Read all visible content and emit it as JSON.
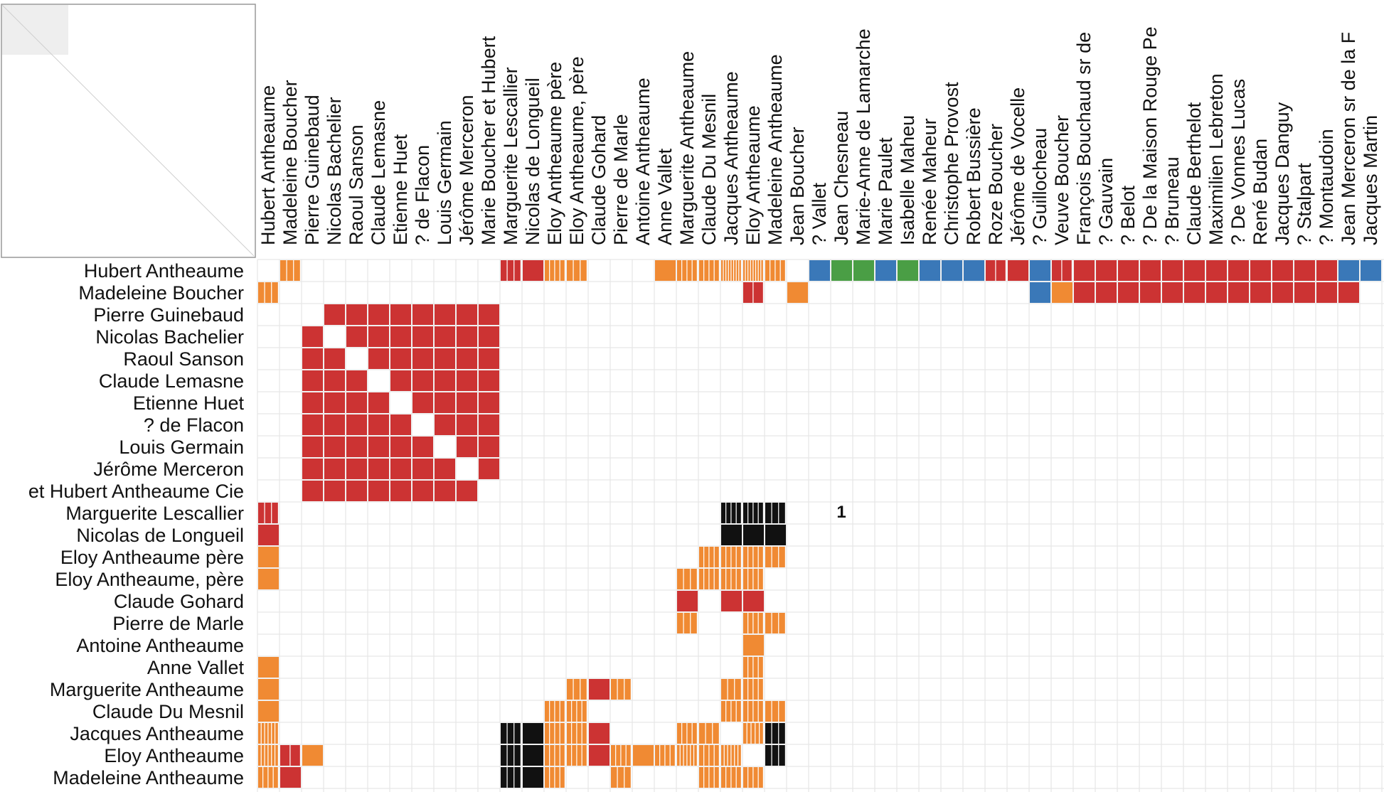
{
  "chart_data": {
    "type": "heatmap",
    "title": "",
    "columns": [
      "Hubert Antheaume",
      "Madeleine Boucher",
      "Pierre Guinebaud",
      "Nicolas Bachelier",
      "Raoul Sanson",
      "Claude Lemasne",
      "Etienne Huet",
      "? de Flacon",
      "Louis Germain",
      "Jérôme Merceron",
      "Marie Boucher et Hubert",
      "Marguerite Lescallier",
      "Nicolas de Longueil",
      "Eloy Antheaume père",
      "Eloy Antheaume, père",
      "Claude Gohard",
      "Pierre de Marle",
      "Antoine Antheaume",
      "Anne Vallet",
      "Marguerite Antheaume",
      "Claude Du Mesnil",
      "Jacques Antheaume",
      "Eloy Antheaume",
      "Madeleine Antheaume",
      "Jean Boucher",
      "? Vallet",
      "Jean Chesneau",
      "Marie-Anne de Lamarche",
      "Marie Paulet",
      "Isabelle Maheu",
      "Renée Maheur",
      "Christophe Provost",
      "Robert Bussière",
      "Roze Boucher",
      "Jérôme de Vocelle",
      "? Guillocheau",
      "Veuve Boucher",
      "François Bouchaud sr de",
      "? Gauvain",
      "? Belot",
      "? De la Maison Rouge Pe",
      "? Bruneau",
      "Claude Berthelot",
      "Maximilien Lebreton",
      "? De Vonnes Lucas",
      "René Budan",
      "Jacques Danguy",
      "? Stalpart",
      "? Montaudoin",
      "Jean Merceron sr de la F",
      "Jacques Martin"
    ],
    "rows": [
      "Hubert Antheaume",
      "Madeleine Boucher",
      "Pierre Guinebaud",
      "Nicolas Bachelier",
      "Raoul Sanson",
      "Claude Lemasne",
      "Etienne Huet",
      "? de Flacon",
      "Louis Germain",
      "Jérôme Merceron",
      "et Hubert Antheaume Cie",
      "Marguerite Lescallier",
      "Nicolas de Longueil",
      "Eloy Antheaume père",
      "Eloy Antheaume, père",
      "Claude Gohard",
      "Pierre de Marle",
      "Antoine Antheaume",
      "Anne Vallet",
      "Marguerite Antheaume",
      "Claude Du Mesnil",
      "Jacques Antheaume",
      "Eloy Antheaume",
      "Madeleine Antheaume"
    ],
    "category_colors": {
      "red": "#cc3333",
      "orange": "#f08a33",
      "blue": "#3a78b8",
      "green": "#4a9e45",
      "black": "#111111"
    },
    "grid_color": "#e6e6e6",
    "cells": [
      {
        "r": 0,
        "c": 1,
        "k": "orange",
        "s": 3
      },
      {
        "r": 0,
        "c": 11,
        "k": "red",
        "s": 3
      },
      {
        "r": 0,
        "c": 12,
        "k": "red"
      },
      {
        "r": 0,
        "c": 13,
        "k": "orange",
        "s": 4
      },
      {
        "r": 0,
        "c": 14,
        "k": "orange",
        "s": 3
      },
      {
        "r": 0,
        "c": 18,
        "k": "orange"
      },
      {
        "r": 0,
        "c": 19,
        "k": "orange",
        "s": 4
      },
      {
        "r": 0,
        "c": 20,
        "k": "orange",
        "s": 4
      },
      {
        "r": 0,
        "c": 21,
        "k": "orange",
        "s": 8
      },
      {
        "r": 0,
        "c": 22,
        "k": "orange",
        "s": 8
      },
      {
        "r": 0,
        "c": 23,
        "k": "orange",
        "s": 4
      },
      {
        "r": 0,
        "c": 25,
        "k": "blue"
      },
      {
        "r": 0,
        "c": 26,
        "k": "green"
      },
      {
        "r": 0,
        "c": 27,
        "k": "green"
      },
      {
        "r": 0,
        "c": 28,
        "k": "blue"
      },
      {
        "r": 0,
        "c": 29,
        "k": "green"
      },
      {
        "r": 0,
        "c": 30,
        "k": "blue"
      },
      {
        "r": 0,
        "c": 31,
        "k": "blue"
      },
      {
        "r": 0,
        "c": 32,
        "k": "blue"
      },
      {
        "r": 0,
        "c": 33,
        "k": "red",
        "s": 2
      },
      {
        "r": 0,
        "c": 34,
        "k": "red"
      },
      {
        "r": 0,
        "c": 35,
        "k": "blue"
      },
      {
        "r": 0,
        "c": 36,
        "k": "red",
        "s": 2
      },
      {
        "r": 0,
        "c": 37,
        "k": "red"
      },
      {
        "r": 0,
        "c": 38,
        "k": "red"
      },
      {
        "r": 0,
        "c": 39,
        "k": "red"
      },
      {
        "r": 0,
        "c": 40,
        "k": "red"
      },
      {
        "r": 0,
        "c": 41,
        "k": "red"
      },
      {
        "r": 0,
        "c": 42,
        "k": "red"
      },
      {
        "r": 0,
        "c": 43,
        "k": "red"
      },
      {
        "r": 0,
        "c": 44,
        "k": "red"
      },
      {
        "r": 0,
        "c": 45,
        "k": "red"
      },
      {
        "r": 0,
        "c": 46,
        "k": "red"
      },
      {
        "r": 0,
        "c": 47,
        "k": "red"
      },
      {
        "r": 0,
        "c": 48,
        "k": "red"
      },
      {
        "r": 0,
        "c": 49,
        "k": "blue"
      },
      {
        "r": 0,
        "c": 50,
        "k": "blue"
      },
      {
        "r": 1,
        "c": 0,
        "k": "orange",
        "s": 3
      },
      {
        "r": 1,
        "c": 22,
        "k": "red",
        "s": 2
      },
      {
        "r": 1,
        "c": 24,
        "k": "orange"
      },
      {
        "r": 1,
        "c": 35,
        "k": "blue"
      },
      {
        "r": 1,
        "c": 36,
        "k": "orange"
      },
      {
        "r": 1,
        "c": 37,
        "k": "red"
      },
      {
        "r": 1,
        "c": 38,
        "k": "red"
      },
      {
        "r": 1,
        "c": 39,
        "k": "red"
      },
      {
        "r": 1,
        "c": 40,
        "k": "red"
      },
      {
        "r": 1,
        "c": 41,
        "k": "red"
      },
      {
        "r": 1,
        "c": 42,
        "k": "red"
      },
      {
        "r": 1,
        "c": 43,
        "k": "red"
      },
      {
        "r": 1,
        "c": 44,
        "k": "red"
      },
      {
        "r": 1,
        "c": 45,
        "k": "red"
      },
      {
        "r": 1,
        "c": 46,
        "k": "red"
      },
      {
        "r": 1,
        "c": 47,
        "k": "red"
      },
      {
        "r": 1,
        "c": 48,
        "k": "red"
      },
      {
        "r": 1,
        "c": 49,
        "k": "red"
      },
      {
        "r": 11,
        "c": 0,
        "k": "red",
        "s": 3
      },
      {
        "r": 11,
        "c": 21,
        "k": "black",
        "s": 4
      },
      {
        "r": 11,
        "c": 22,
        "k": "black",
        "s": 4
      },
      {
        "r": 11,
        "c": 23,
        "k": "black",
        "s": 3
      },
      {
        "r": 12,
        "c": 0,
        "k": "red"
      },
      {
        "r": 12,
        "c": 21,
        "k": "black"
      },
      {
        "r": 12,
        "c": 22,
        "k": "black"
      },
      {
        "r": 12,
        "c": 23,
        "k": "black"
      },
      {
        "r": 13,
        "c": 0,
        "k": "orange"
      },
      {
        "r": 13,
        "c": 20,
        "k": "orange",
        "s": 4
      },
      {
        "r": 13,
        "c": 21,
        "k": "orange",
        "s": 4
      },
      {
        "r": 13,
        "c": 22,
        "k": "orange",
        "s": 4
      },
      {
        "r": 13,
        "c": 23,
        "k": "orange",
        "s": 3
      },
      {
        "r": 14,
        "c": 0,
        "k": "orange"
      },
      {
        "r": 14,
        "c": 19,
        "k": "orange",
        "s": 3
      },
      {
        "r": 14,
        "c": 20,
        "k": "orange",
        "s": 4
      },
      {
        "r": 14,
        "c": 21,
        "k": "orange",
        "s": 4
      },
      {
        "r": 14,
        "c": 22,
        "k": "orange",
        "s": 4
      },
      {
        "r": 15,
        "c": 19,
        "k": "red"
      },
      {
        "r": 15,
        "c": 21,
        "k": "red"
      },
      {
        "r": 15,
        "c": 22,
        "k": "red"
      },
      {
        "r": 16,
        "c": 19,
        "k": "orange",
        "s": 3
      },
      {
        "r": 16,
        "c": 22,
        "k": "orange",
        "s": 4
      },
      {
        "r": 16,
        "c": 23,
        "k": "orange",
        "s": 3
      },
      {
        "r": 17,
        "c": 22,
        "k": "orange"
      },
      {
        "r": 18,
        "c": 0,
        "k": "orange"
      },
      {
        "r": 18,
        "c": 22,
        "k": "orange",
        "s": 4
      },
      {
        "r": 19,
        "c": 0,
        "k": "orange"
      },
      {
        "r": 19,
        "c": 14,
        "k": "orange",
        "s": 3
      },
      {
        "r": 19,
        "c": 15,
        "k": "red"
      },
      {
        "r": 19,
        "c": 16,
        "k": "orange",
        "s": 3
      },
      {
        "r": 19,
        "c": 21,
        "k": "orange",
        "s": 3
      },
      {
        "r": 19,
        "c": 22,
        "k": "orange",
        "s": 4
      },
      {
        "r": 20,
        "c": 0,
        "k": "orange"
      },
      {
        "r": 20,
        "c": 13,
        "k": "orange",
        "s": 4
      },
      {
        "r": 20,
        "c": 14,
        "k": "orange",
        "s": 4
      },
      {
        "r": 20,
        "c": 21,
        "k": "orange",
        "s": 4
      },
      {
        "r": 20,
        "c": 22,
        "k": "orange",
        "s": 4
      },
      {
        "r": 20,
        "c": 23,
        "k": "orange",
        "s": 3
      },
      {
        "r": 21,
        "c": 0,
        "k": "orange",
        "s": 6
      },
      {
        "r": 21,
        "c": 11,
        "k": "black",
        "s": 3
      },
      {
        "r": 21,
        "c": 12,
        "k": "black"
      },
      {
        "r": 21,
        "c": 13,
        "k": "orange",
        "s": 4
      },
      {
        "r": 21,
        "c": 14,
        "k": "orange",
        "s": 4
      },
      {
        "r": 21,
        "c": 15,
        "k": "red"
      },
      {
        "r": 21,
        "c": 19,
        "k": "orange",
        "s": 4
      },
      {
        "r": 21,
        "c": 20,
        "k": "orange",
        "s": 3
      },
      {
        "r": 21,
        "c": 22,
        "k": "orange",
        "s": 5
      },
      {
        "r": 21,
        "c": 23,
        "k": "black",
        "s": 3
      },
      {
        "r": 22,
        "c": 0,
        "k": "orange",
        "s": 6
      },
      {
        "r": 22,
        "c": 1,
        "k": "red",
        "s": 2
      },
      {
        "r": 22,
        "c": 2,
        "k": "orange"
      },
      {
        "r": 22,
        "c": 11,
        "k": "black",
        "s": 3
      },
      {
        "r": 22,
        "c": 12,
        "k": "black"
      },
      {
        "r": 22,
        "c": 13,
        "k": "orange",
        "s": 4
      },
      {
        "r": 22,
        "c": 14,
        "k": "orange",
        "s": 4
      },
      {
        "r": 22,
        "c": 15,
        "k": "red"
      },
      {
        "r": 22,
        "c": 16,
        "k": "orange",
        "s": 4
      },
      {
        "r": 22,
        "c": 17,
        "k": "orange"
      },
      {
        "r": 22,
        "c": 18,
        "k": "orange",
        "s": 4
      },
      {
        "r": 22,
        "c": 19,
        "k": "orange",
        "s": 6
      },
      {
        "r": 22,
        "c": 20,
        "k": "orange",
        "s": 4
      },
      {
        "r": 22,
        "c": 21,
        "k": "orange",
        "s": 6
      },
      {
        "r": 22,
        "c": 23,
        "k": "black",
        "s": 3
      },
      {
        "r": 23,
        "c": 0,
        "k": "orange",
        "s": 4
      },
      {
        "r": 23,
        "c": 1,
        "k": "red"
      },
      {
        "r": 23,
        "c": 11,
        "k": "black",
        "s": 3
      },
      {
        "r": 23,
        "c": 12,
        "k": "black"
      },
      {
        "r": 23,
        "c": 13,
        "k": "orange",
        "s": 4
      },
      {
        "r": 23,
        "c": 16,
        "k": "orange",
        "s": 3
      },
      {
        "r": 23,
        "c": 20,
        "k": "orange",
        "s": 4
      },
      {
        "r": 23,
        "c": 21,
        "k": "orange",
        "s": 4
      },
      {
        "r": 23,
        "c": 22,
        "k": "orange",
        "s": 4
      }
    ],
    "annotations": [
      {
        "text": "1",
        "row": 11,
        "col": 26
      }
    ]
  }
}
